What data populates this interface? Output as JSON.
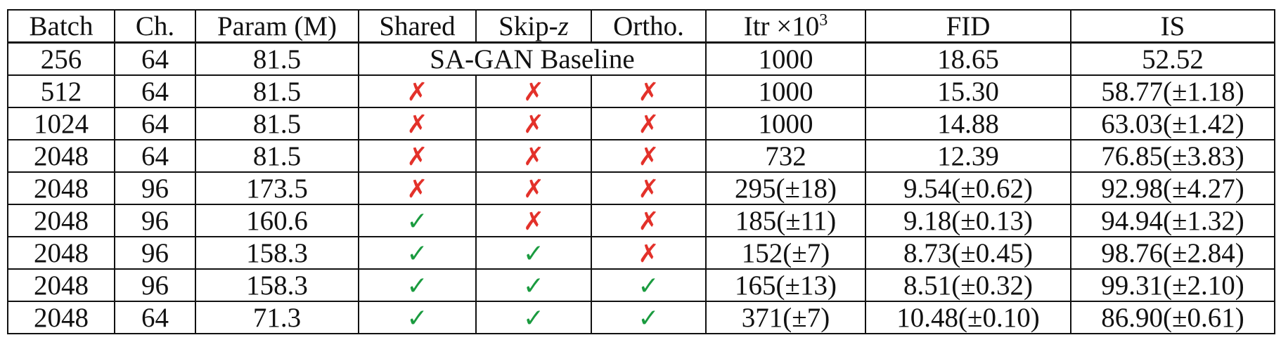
{
  "headers": {
    "batch": "Batch",
    "ch": "Ch.",
    "param": "Param (M)",
    "shared": "Shared",
    "skip_prefix": "Skip-",
    "skip_var": "z",
    "ortho": "Ortho.",
    "itr_prefix": "Itr ×10",
    "itr_exp": "3",
    "fid": "FID",
    "is": "IS"
  },
  "baseline": {
    "batch": "256",
    "ch": "64",
    "param": "81.5",
    "label": "SA-GAN Baseline",
    "itr": "1000",
    "fid": "18.65",
    "is": "52.52"
  },
  "marks": {
    "yes": "✓",
    "no": "✗"
  },
  "colors": {
    "yes": "#1a9b3f",
    "no": "#e3312a"
  },
  "rows": [
    {
      "batch": "512",
      "ch": "64",
      "param": "81.5",
      "shared": "no",
      "skip": "no",
      "ortho": "no",
      "itr": "1000",
      "fid": "15.30",
      "is": "58.77(±1.18)"
    },
    {
      "batch": "1024",
      "ch": "64",
      "param": "81.5",
      "shared": "no",
      "skip": "no",
      "ortho": "no",
      "itr": "1000",
      "fid": "14.88",
      "is": "63.03(±1.42)"
    },
    {
      "batch": "2048",
      "ch": "64",
      "param": "81.5",
      "shared": "no",
      "skip": "no",
      "ortho": "no",
      "itr": "732",
      "fid": "12.39",
      "is": "76.85(±3.83)"
    },
    {
      "batch": "2048",
      "ch": "96",
      "param": "173.5",
      "shared": "no",
      "skip": "no",
      "ortho": "no",
      "itr": "295(±18)",
      "fid": "9.54(±0.62)",
      "is": "92.98(±4.27)"
    },
    {
      "batch": "2048",
      "ch": "96",
      "param": "160.6",
      "shared": "yes",
      "skip": "no",
      "ortho": "no",
      "itr": "185(±11)",
      "fid": "9.18(±0.13)",
      "is": "94.94(±1.32)"
    },
    {
      "batch": "2048",
      "ch": "96",
      "param": "158.3",
      "shared": "yes",
      "skip": "yes",
      "ortho": "no",
      "itr": "152(±7)",
      "fid": "8.73(±0.45)",
      "is": "98.76(±2.84)"
    },
    {
      "batch": "2048",
      "ch": "96",
      "param": "158.3",
      "shared": "yes",
      "skip": "yes",
      "ortho": "yes",
      "itr": "165(±13)",
      "fid": "8.51(±0.32)",
      "is": "99.31(±2.10)"
    },
    {
      "batch": "2048",
      "ch": "64",
      "param": "71.3",
      "shared": "yes",
      "skip": "yes",
      "ortho": "yes",
      "itr": "371(±7)",
      "fid": "10.48(±0.10)",
      "is": "86.90(±0.61)"
    }
  ]
}
